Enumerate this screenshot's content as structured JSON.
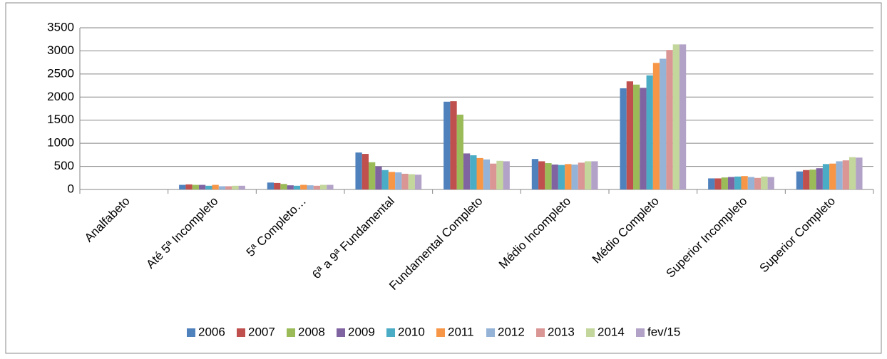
{
  "chart_data": {
    "type": "bar",
    "categories": [
      "Analfabeto",
      "Até 5ª Incompleto",
      "5ª Completo…",
      "6ª a 9ª Fundamental",
      "Fundamental Completo",
      "Médio Incompleto",
      "Médio Completo",
      "Superior Incompleto",
      "Superior Completo"
    ],
    "series": [
      {
        "name": "2006",
        "color": "#4F81BD",
        "values": [
          0,
          100,
          150,
          800,
          1900,
          660,
          2190,
          240,
          390
        ]
      },
      {
        "name": "2007",
        "color": "#C0504D",
        "values": [
          0,
          110,
          140,
          770,
          1910,
          610,
          2340,
          240,
          420
        ]
      },
      {
        "name": "2008",
        "color": "#9BBB59",
        "values": [
          0,
          100,
          120,
          590,
          1620,
          570,
          2270,
          260,
          430
        ]
      },
      {
        "name": "2009",
        "color": "#8064A2",
        "values": [
          0,
          100,
          90,
          500,
          780,
          540,
          2200,
          270,
          460
        ]
      },
      {
        "name": "2010",
        "color": "#4BACC6",
        "values": [
          0,
          80,
          80,
          420,
          740,
          530,
          2470,
          280,
          550
        ]
      },
      {
        "name": "2011",
        "color": "#F79646",
        "values": [
          0,
          100,
          100,
          380,
          680,
          550,
          2740,
          290,
          560
        ]
      },
      {
        "name": "2012",
        "color": "#95B3D7",
        "values": [
          0,
          70,
          90,
          370,
          650,
          540,
          2830,
          270,
          610
        ]
      },
      {
        "name": "2013",
        "color": "#DA9694",
        "values": [
          0,
          70,
          80,
          340,
          560,
          580,
          3020,
          250,
          630
        ]
      },
      {
        "name": "2014",
        "color": "#C3D69B",
        "values": [
          0,
          80,
          100,
          330,
          620,
          610,
          3140,
          280,
          700
        ]
      },
      {
        "name": "fev/15",
        "color": "#B3A2C7",
        "values": [
          0,
          80,
          100,
          320,
          610,
          610,
          3140,
          270,
          690
        ]
      }
    ],
    "ylim": [
      0,
      3500
    ],
    "yticks": [
      0,
      500,
      1000,
      1500,
      2000,
      2500,
      3000,
      3500
    ],
    "grid": true,
    "legend": "bottom"
  }
}
